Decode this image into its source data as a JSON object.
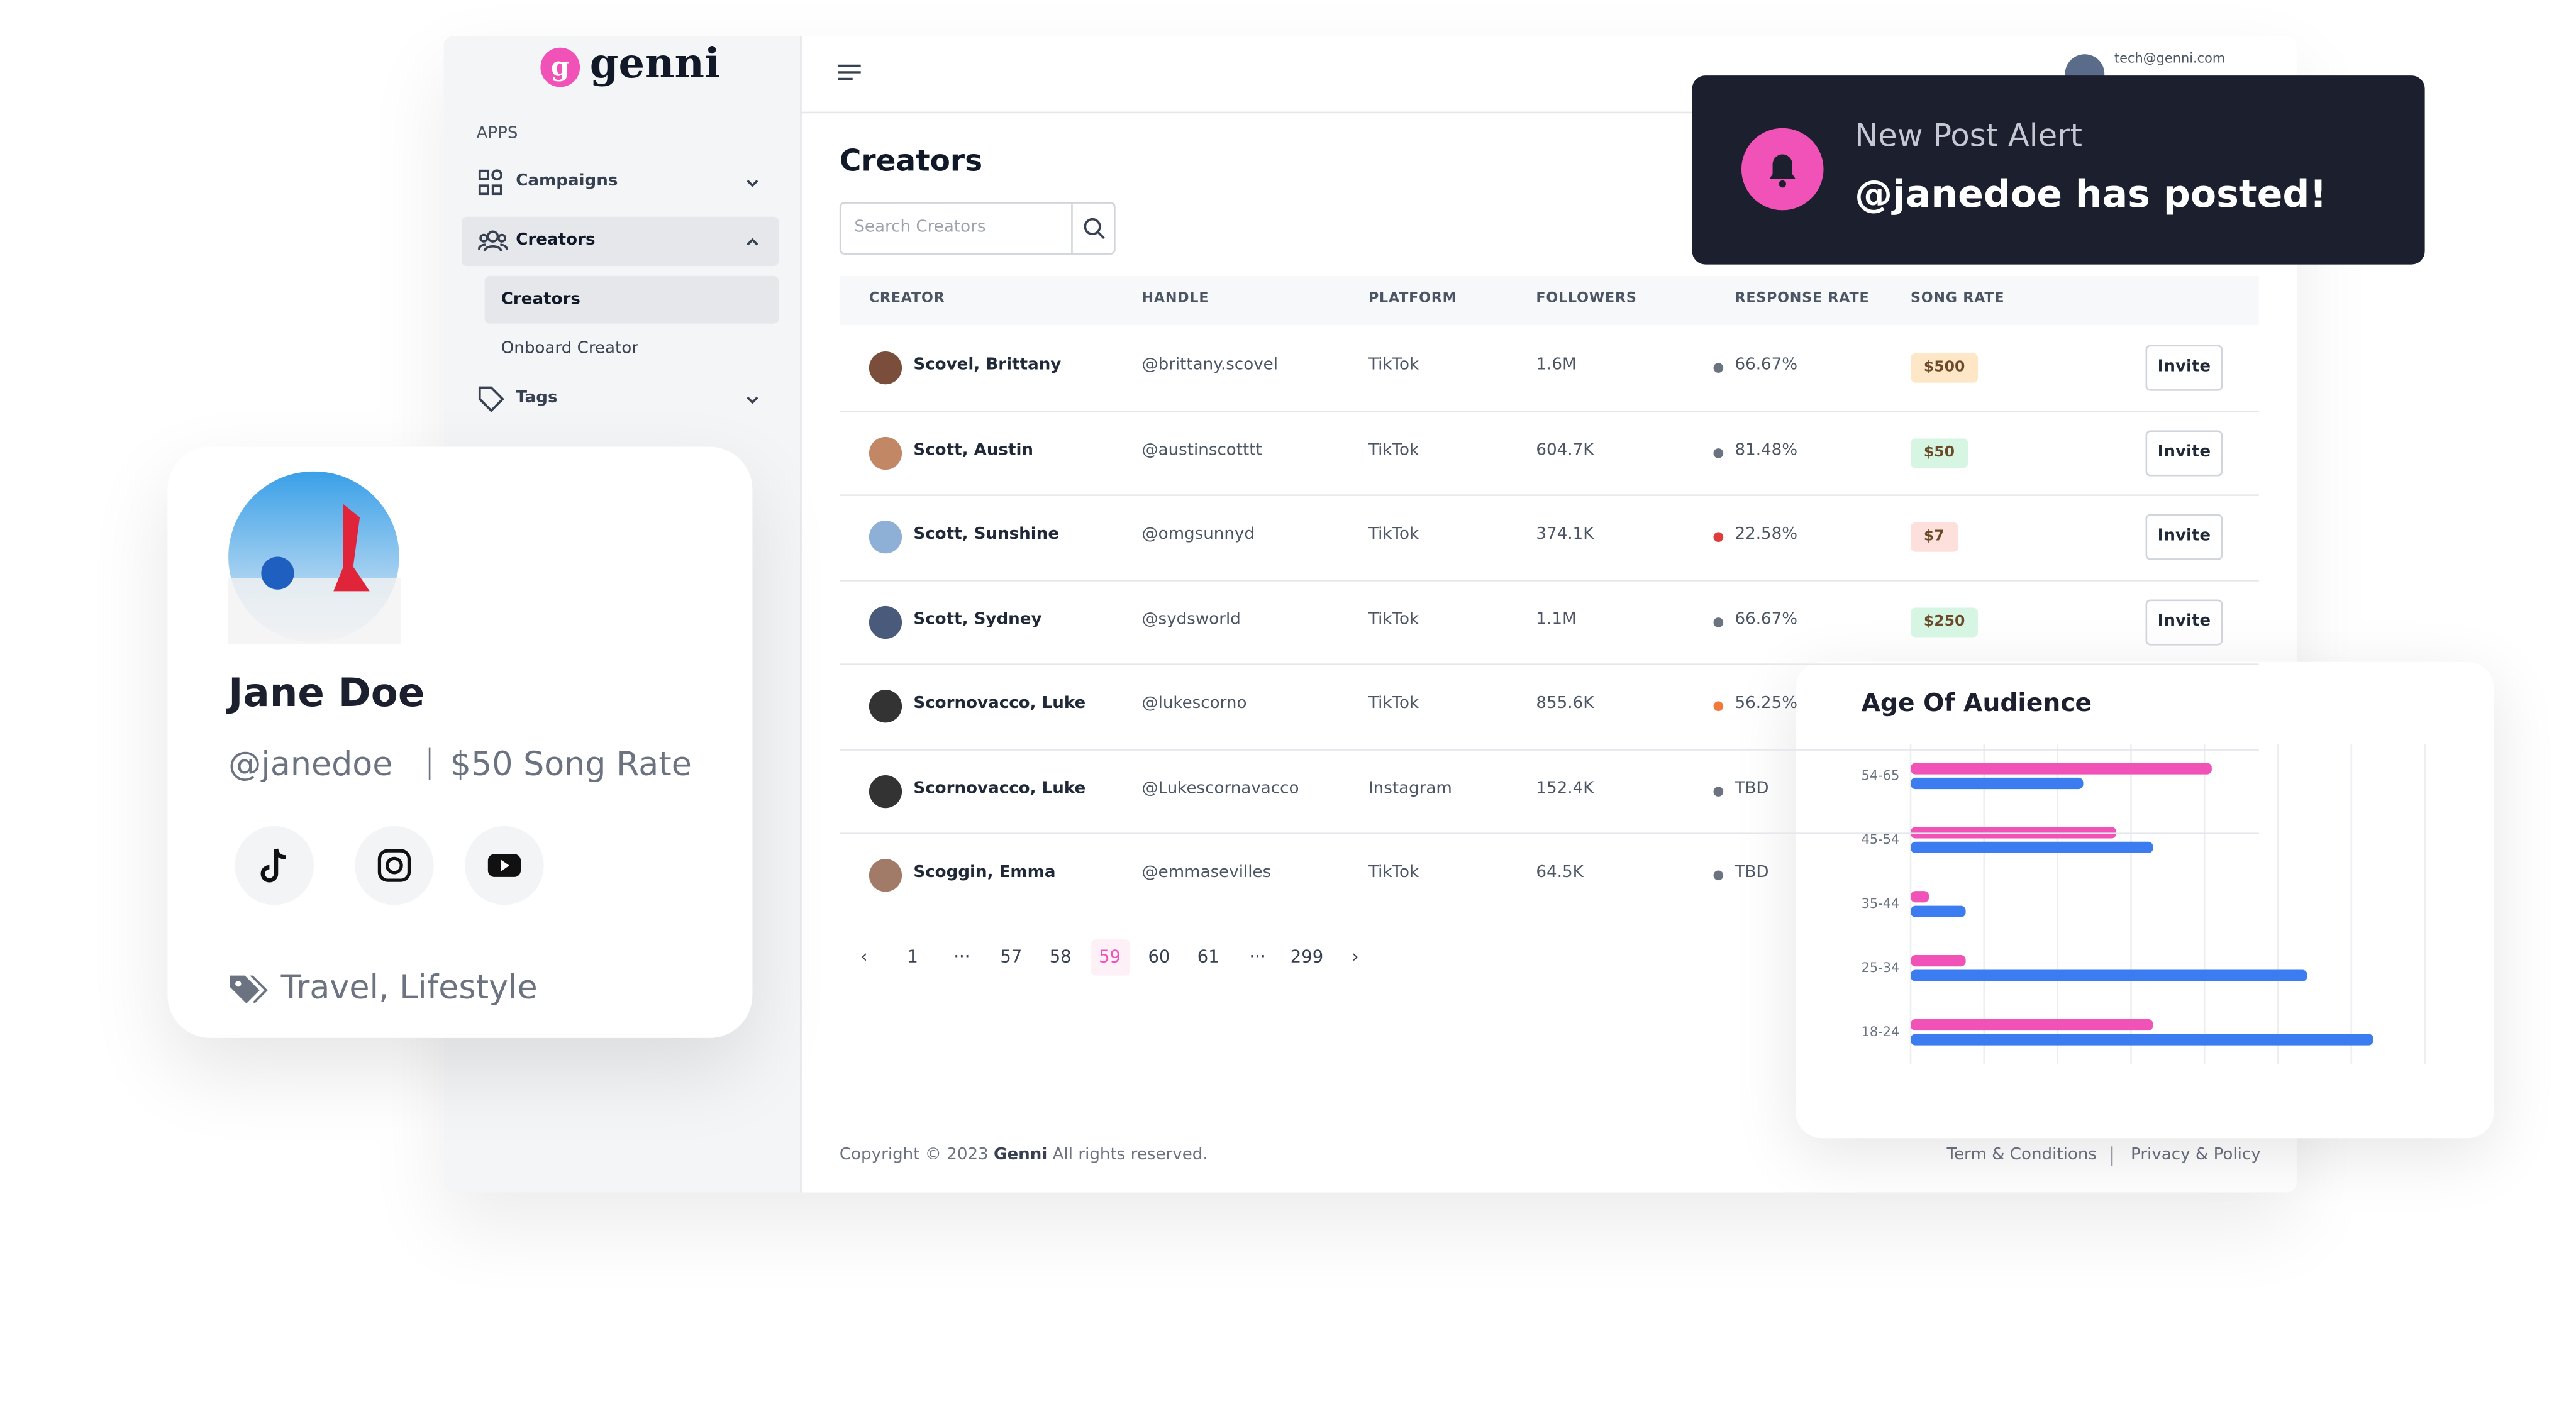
{
  "logo": "genni",
  "header": {
    "email": "tech@genni.com"
  },
  "sidebar": {
    "section": "APPS",
    "items": [
      "Campaigns",
      "Creators",
      "Tags"
    ],
    "subitems": [
      "Creators",
      "Onboard Creator"
    ]
  },
  "page": {
    "title": "Creators",
    "search_placeholder": "Search Creators"
  },
  "table": {
    "headers": [
      "CREATOR",
      "HANDLE",
      "PLATFORM",
      "FOLLOWERS",
      "RESPONSE RATE",
      "SONG RATE"
    ],
    "rows": [
      {
        "cells": [
          "Scovel, Brittany",
          "@brittany.scovel",
          "TikTok",
          "1.6M",
          "66.67%",
          "$500"
        ],
        "dot": "#6b7280",
        "rate_color": "#fde7c7",
        "invite": "Invite"
      },
      {
        "cells": [
          "Scott, Austin",
          "@austinscotttt",
          "TikTok",
          "604.7K",
          "81.48%",
          "$50"
        ],
        "dot": "#6b7280",
        "rate_color": "#d6f5e3",
        "invite": "Invite"
      },
      {
        "cells": [
          "Scott, Sunshine",
          "@omgsunnyd",
          "TikTok",
          "374.1K",
          "22.58%",
          "$7"
        ],
        "dot": "#e03c3c",
        "rate_color": "#fde0dc",
        "invite": "Invite"
      },
      {
        "cells": [
          "Scott, Sydney",
          "@sydsworld",
          "TikTok",
          "1.1M",
          "66.67%",
          "$250"
        ],
        "dot": "#6b7280",
        "rate_color": "#d6f5e3",
        "invite": "Invite"
      },
      {
        "cells": [
          "Scornovacco, Luke",
          "@lukescorno",
          "TikTok",
          "855.6K",
          "56.25%"
        ],
        "dot": "#f07a3c"
      },
      {
        "cells": [
          "Scornovacco, Luke",
          "@Lukescornavacco",
          "Instagram",
          "152.4K",
          "TBD"
        ],
        "dot": "#6b7280"
      },
      {
        "cells": [
          "Scoggin, Emma",
          "@emmasevilles",
          "TikTok",
          "64.5K",
          "TBD"
        ],
        "dot": "#6b7280"
      }
    ]
  },
  "pagination": {
    "items": [
      "‹",
      "1",
      "···",
      "57",
      "58",
      "59",
      "60",
      "61",
      "···",
      "299",
      "›"
    ],
    "active": 5
  },
  "footer": {
    "copyright": "Copyright © 2023",
    "brand": "Genni",
    "rights": "All rights reserved.",
    "links": [
      "Term & Conditions",
      "Privacy & Policy"
    ]
  },
  "alert": {
    "title": "New Post Alert",
    "message": "@janedoe has posted!"
  },
  "profile": {
    "name": "Jane Doe",
    "handle": "@janedoe",
    "rate": "$50 Song Rate",
    "tags": "Travel, Lifestyle"
  },
  "chart_data": {
    "type": "bar",
    "orientation": "horizontal",
    "title": "Age Of Audience",
    "categories": [
      "54-65",
      "45-54",
      "35-44",
      "25-34",
      "18-24"
    ],
    "series": [
      {
        "color": "#f052b7",
        "values": [
          41,
          28,
          2.5,
          7.5,
          33
        ]
      },
      {
        "color": "#3b7cf0",
        "values": [
          23.5,
          33,
          7.5,
          54,
          63
        ]
      }
    ],
    "xlim": [
      0,
      70
    ],
    "xgrid": [
      0,
      10,
      20,
      30,
      40,
      50,
      60,
      70
    ],
    "grid": true
  }
}
